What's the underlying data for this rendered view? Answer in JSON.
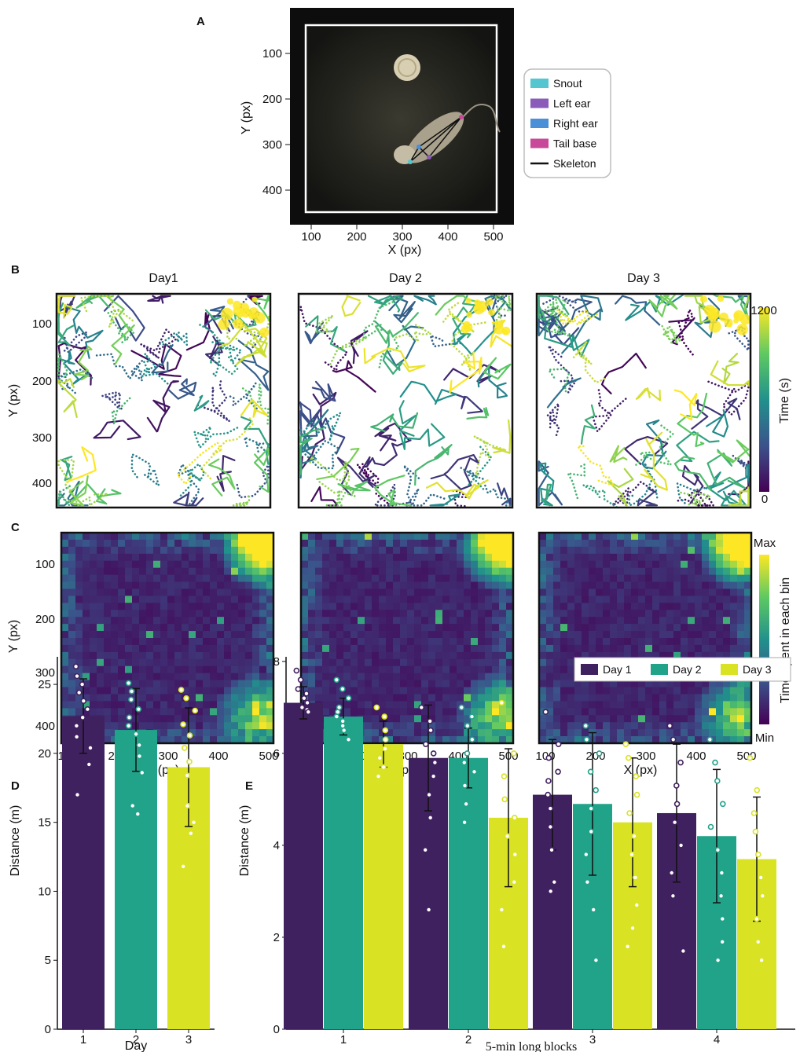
{
  "colors": {
    "day1": "#40215f",
    "day2": "#21a38a",
    "day3": "#d9e324",
    "cmap": [
      "#440154",
      "#3b528b",
      "#21918c",
      "#5ec962",
      "#fde725"
    ]
  },
  "chart_data": [
    {
      "panel": "A",
      "type": "image",
      "xlabel": "X (px)",
      "ylabel": "Y (px)",
      "xticks": [
        "100",
        "200",
        "300",
        "400",
        "500"
      ],
      "yticks": [
        "100",
        "200",
        "300",
        "400"
      ],
      "legend": [
        "Snout",
        "Left ear",
        "Right ear",
        "Tail base",
        "Skeleton"
      ],
      "legend_colors": [
        "#55c6cf",
        "#8a5bb8",
        "#4b8fd6",
        "#c8489a",
        "#111111"
      ]
    },
    {
      "panel": "B",
      "type": "scatter",
      "subplot_titles": [
        "Day1",
        "Day 2",
        "Day 3"
      ],
      "ylabel": "Y (px)",
      "yticks": [
        "100",
        "200",
        "300",
        "400"
      ],
      "colorbar_label": "Time (s)",
      "colorbar_ticks": [
        "1200",
        "0"
      ]
    },
    {
      "panel": "C",
      "type": "heatmap",
      "xlabel": "X (px)",
      "ylabel": "Y (px)",
      "xticks": [
        "100",
        "200",
        "300",
        "400",
        "500"
      ],
      "yticks": [
        "100",
        "200",
        "300",
        "400"
      ],
      "colorbar_label": "Time spent in each bin",
      "colorbar_ticks": [
        "Max",
        "Min"
      ]
    },
    {
      "panel": "D",
      "type": "bar",
      "xlabel": "Day",
      "ylabel": "Distance (m)",
      "categories": [
        "1",
        "2",
        "3"
      ],
      "values": [
        22.7,
        21.7,
        19.0
      ],
      "errors": [
        2.7,
        3.0,
        4.3
      ],
      "ylim": [
        0,
        27
      ],
      "yticks": [
        "0",
        "5",
        "10",
        "15",
        "20",
        "25"
      ],
      "points": [
        [
          26.3,
          25.6,
          25.0,
          24.4,
          23.8,
          23.2,
          22.6,
          22.0,
          21.2,
          20.4,
          19.2,
          17.0
        ],
        [
          25.1,
          24.5,
          23.9,
          23.2,
          22.6,
          22.0,
          21.4,
          20.6,
          19.8,
          18.6,
          16.2,
          15.6
        ],
        [
          24.6,
          24.0,
          23.1,
          22.1,
          21.3,
          20.4,
          19.4,
          18.4,
          16.2,
          15.0,
          14.2,
          11.8
        ]
      ]
    },
    {
      "panel": "E",
      "type": "bar",
      "xlabel": "5-min long blocks",
      "ylabel": "Distance (m)",
      "categories": [
        "1",
        "2",
        "3",
        "4"
      ],
      "ylim": [
        0,
        8.1
      ],
      "yticks": [
        "0",
        "2",
        "4",
        "6",
        "8"
      ],
      "series": [
        {
          "name": "Day 1",
          "values": [
            7.1,
            5.9,
            5.1,
            4.7
          ],
          "errors": [
            0.35,
            1.15,
            1.2,
            1.5
          ],
          "points": [
            [
              7.8,
              7.6,
              7.4,
              7.3,
              7.2,
              7.1,
              7.0,
              6.95,
              6.9
            ],
            [
              7.0,
              6.7,
              6.5,
              6.2,
              6.0,
              5.8,
              5.5,
              5.1,
              4.6,
              3.9,
              2.6
            ],
            [
              6.9,
              6.2,
              5.9,
              5.6,
              5.4,
              5.1,
              4.8,
              4.4,
              3.9,
              3.2,
              3.0
            ],
            [
              6.6,
              6.3,
              5.8,
              5.3,
              4.9,
              4.5,
              4.0,
              3.4,
              2.9,
              1.7
            ]
          ]
        },
        {
          "name": "Day 2",
          "values": [
            6.8,
            5.9,
            4.9,
            4.2
          ],
          "errors": [
            0.4,
            0.65,
            1.55,
            1.45
          ],
          "points": [
            [
              7.6,
              7.4,
              7.2,
              7.0,
              6.9,
              6.8,
              6.7,
              6.6,
              6.5,
              6.3
            ],
            [
              7.0,
              6.8,
              6.6,
              6.3,
              6.0,
              5.8,
              5.6,
              5.3,
              4.9,
              4.5
            ],
            [
              6.6,
              6.3,
              6.0,
              5.6,
              5.2,
              4.8,
              4.3,
              3.8,
              3.2,
              2.6,
              1.5
            ],
            [
              6.3,
              5.8,
              5.4,
              4.9,
              4.4,
              3.9,
              3.4,
              2.9,
              2.4,
              1.9,
              1.5
            ]
          ]
        },
        {
          "name": "Day 3",
          "values": [
            6.2,
            4.6,
            4.5,
            3.7
          ],
          "errors": [
            0.5,
            1.5,
            1.4,
            1.35
          ],
          "points": [
            [
              7.0,
              6.8,
              6.5,
              6.3,
              6.1,
              5.9,
              5.7,
              5.5
            ],
            [
              7.1,
              6.0,
              5.5,
              5.0,
              4.6,
              4.2,
              3.8,
              3.2,
              2.6,
              1.8
            ],
            [
              6.2,
              5.9,
              5.5,
              5.1,
              4.7,
              4.2,
              3.8,
              3.3,
              2.7,
              2.2,
              1.8
            ],
            [
              5.9,
              5.2,
              4.7,
              4.3,
              3.8,
              3.3,
              2.9,
              2.4,
              1.9,
              1.5
            ]
          ]
        }
      ]
    }
  ]
}
